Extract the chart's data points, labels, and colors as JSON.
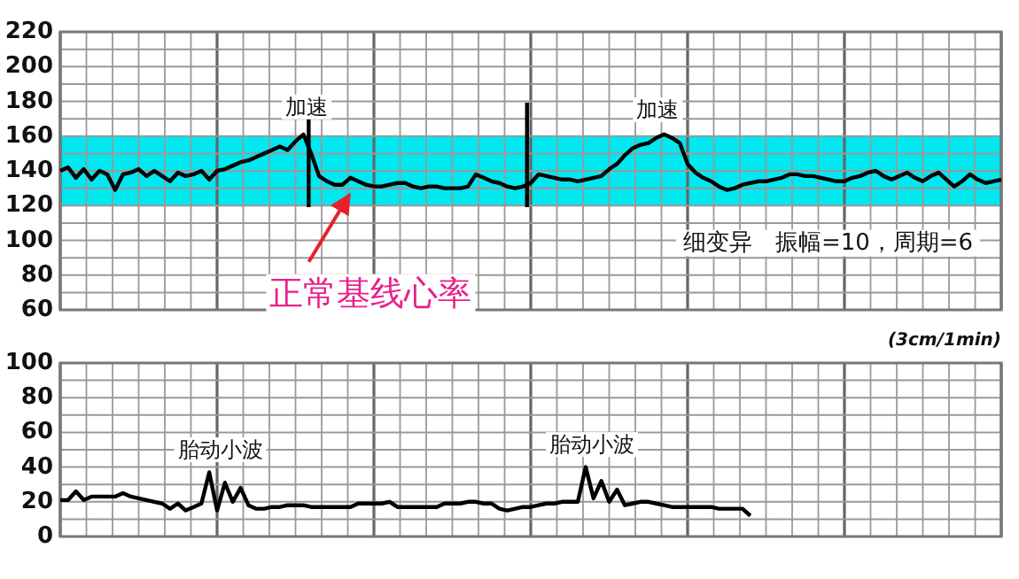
{
  "chart_data": [
    {
      "type": "line",
      "categories": [
        null,
        null,
        null,
        null,
        null,
        null,
        null,
        null,
        null,
        null,
        null,
        null,
        null,
        null,
        null,
        null,
        null,
        null,
        null,
        null,
        null,
        null,
        null,
        null,
        null,
        null,
        null,
        null,
        null,
        null,
        null,
        null,
        null,
        null,
        null,
        null,
        null,
        null,
        null,
        null,
        null,
        null,
        null,
        null,
        null,
        null,
        null,
        null,
        null,
        null,
        null,
        null,
        null,
        null,
        null,
        null,
        null,
        null,
        null,
        null,
        null,
        null,
        null,
        null,
        null,
        null,
        null,
        null,
        null,
        null,
        null,
        null,
        null,
        null,
        null,
        null,
        null,
        null,
        null,
        null,
        null,
        null,
        null,
        null,
        null,
        null,
        null,
        null,
        null,
        null,
        null,
        null,
        null,
        null,
        null,
        null,
        null,
        null,
        null,
        null,
        null,
        null,
        null,
        null,
        null,
        null,
        null,
        null,
        null,
        null,
        null,
        null,
        null,
        null,
        null,
        null,
        null,
        null,
        null,
        null,
        null
      ],
      "ylim": [
        60,
        220
      ],
      "yticks": [
        60,
        80,
        100,
        120,
        140,
        160,
        180,
        200,
        220
      ],
      "tick_labels": "y",
      "grid": true,
      "bands": [
        {
          "axis": "y",
          "from": 120,
          "to": 160,
          "color": "#00e8f0"
        }
      ],
      "series": [
        {
          "color": "#000000",
          "values": [
            140,
            142,
            136,
            141,
            135,
            140,
            138,
            129,
            138,
            139,
            141,
            137,
            140,
            137,
            134,
            139,
            137,
            138,
            140,
            135,
            140,
            141,
            143,
            145,
            146,
            148,
            150,
            152,
            154,
            152,
            157,
            161,
            150,
            137,
            134,
            132,
            132,
            136,
            134,
            132,
            131,
            131,
            132,
            133,
            133,
            131,
            130,
            131,
            131,
            130,
            130,
            130,
            131,
            138,
            136,
            134,
            133,
            131,
            130,
            131,
            133,
            138,
            137,
            136,
            135,
            135,
            134,
            135,
            136,
            137,
            141,
            144,
            149,
            153,
            155,
            156,
            159,
            161,
            159,
            156,
            144,
            139,
            136,
            134,
            131,
            129,
            130,
            132,
            133,
            134,
            134,
            135,
            136,
            138,
            138,
            137,
            137,
            136,
            135,
            134,
            134,
            136,
            137,
            139,
            140,
            137,
            135,
            137,
            139,
            136,
            134,
            137,
            139,
            135,
            131,
            134,
            138,
            135,
            133,
            134,
            135
          ]
        }
      ],
      "annotations": [
        "加速",
        "加速",
        "细变异　振幅=10，周期=6",
        "正常基线心率"
      ]
    },
    {
      "type": "line",
      "categories": [
        null,
        null,
        null,
        null,
        null,
        null,
        null,
        null,
        null,
        null,
        null,
        null,
        null,
        null,
        null,
        null,
        null,
        null,
        null,
        null,
        null,
        null,
        null,
        null,
        null,
        null,
        null,
        null,
        null,
        null,
        null,
        null,
        null,
        null,
        null,
        null,
        null,
        null,
        null,
        null,
        null,
        null,
        null,
        null,
        null,
        null,
        null,
        null,
        null,
        null,
        null,
        null,
        null,
        null,
        null,
        null,
        null,
        null,
        null,
        null,
        null,
        null,
        null,
        null,
        null,
        null,
        null,
        null,
        null,
        null,
        null,
        null,
        null,
        null,
        null,
        null,
        null,
        null,
        null,
        null,
        null,
        null,
        null,
        null,
        null,
        null,
        null,
        null,
        null,
        null,
        null,
        null,
        null,
        null,
        null,
        null,
        null,
        null,
        null,
        null,
        null,
        null,
        null,
        null,
        null,
        null,
        null,
        null,
        null,
        null,
        null,
        null,
        null,
        null,
        null,
        null,
        null,
        null,
        null,
        null,
        null
      ],
      "ylim": [
        0,
        100
      ],
      "yticks": [
        0,
        20,
        40,
        60,
        80,
        100
      ],
      "tick_labels": "y",
      "grid": true,
      "series": [
        {
          "color": "#000000",
          "values": [
            21,
            21,
            26,
            21,
            23,
            23,
            23,
            23,
            25,
            23,
            22,
            21,
            20,
            19,
            16,
            19,
            15,
            17,
            19,
            37,
            15,
            31,
            20,
            28,
            18,
            16,
            16,
            17,
            17,
            18,
            18,
            18,
            17,
            17,
            17,
            17,
            17,
            17,
            19,
            19,
            19,
            19,
            20,
            17,
            17,
            17,
            17,
            17,
            17,
            19,
            19,
            19,
            20,
            20,
            19,
            19,
            16,
            15,
            16,
            17,
            17,
            18,
            19,
            19,
            20,
            20,
            20,
            40,
            22,
            32,
            20,
            27,
            18,
            19,
            20,
            20,
            19,
            18,
            17,
            17,
            17,
            17,
            17,
            17,
            16,
            16,
            16,
            16,
            12,
            null,
            null,
            null,
            null,
            null,
            null,
            null,
            null,
            null,
            null,
            null,
            null,
            null,
            null,
            null,
            null,
            null,
            null,
            null,
            null,
            null,
            null,
            null,
            null,
            null,
            null,
            null,
            null,
            null,
            null,
            null,
            null
          ]
        }
      ],
      "annotations": [
        "胎动小波",
        "胎动小波",
        "(3cm/1min)"
      ]
    }
  ]
}
